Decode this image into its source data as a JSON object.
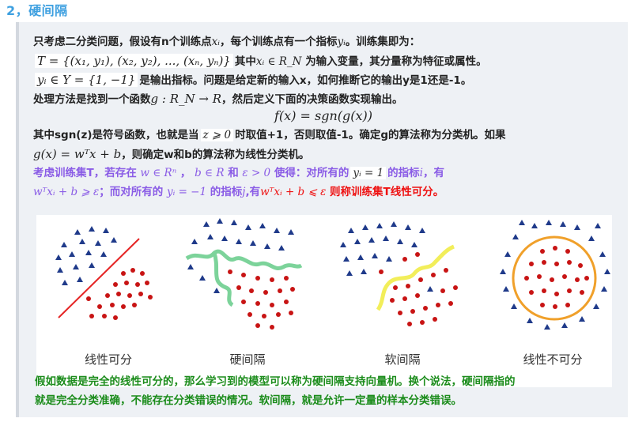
{
  "heading": "2，硬间隔",
  "lines": {
    "l1_a": "只考虑二分类问题，假设有n个训练点",
    "l1_xi": "xᵢ",
    "l1_b": "，每个训练点有一个指标",
    "l1_yi": "yᵢ",
    "l1_c": "。训练集即为：",
    "l2_math": "T = {(x₁, y₁), (x₂, y₂), ..., (xₙ, yₙ)}",
    "l2_a": "其中",
    "l2_math2": "xᵢ ∈ R_N",
    "l2_b": "为输入变量，其分量称为特征或属性。",
    "l3_math": "yᵢ ∈ Y = {1, −1}",
    "l3_a": "是输出指标。问题是给定新的输入x，如何推断它的输出y是1还是-1。",
    "l4_a": "处理方法是找到一个函数",
    "l4_math": "g : R_N → R",
    "l4_b": "，然后定义下面的决策函数实现输出。",
    "l5_math": "f(x) = sgn(g(x))",
    "l6_a": "其中sgn(z)是符号函数，也就是当",
    "l6_math": "z ⩾ 0",
    "l6_b": "时取值+1，否则取值-1。确定g的算法称为分类机。如果",
    "l7_math": "g(x) = wᵀx + b",
    "l7_a": "，则确定w和b的算法称为线性分类机。",
    "l8_a": "考虑训练集T，若存在",
    "l8_m1": "w ∈ Rⁿ",
    "l8_b": "，",
    "l8_m2": "b ∈ R",
    "l8_c": "和",
    "l8_m3": "ε > 0",
    "l8_d": "使得：对所有的",
    "l8_m4": "yᵢ = 1",
    "l8_e": "的指标",
    "l8_m5": "i",
    "l8_f": "，有",
    "l9_m1": "wᵀxᵢ + b ⩾ ε",
    "l9_a": "；而对所有的",
    "l9_m2": "yᵢ = −1",
    "l9_b": "的指标",
    "l9_m3": "j",
    "l9_c": ",有",
    "l9_m4": "wᵀxᵢ + b ⩽ ε",
    "l9_d": "则称训练集T线性可分。"
  },
  "figure": {
    "labels": [
      "线性可分",
      "硬间隔",
      "软间隔",
      "线性不可分"
    ]
  },
  "bottom": {
    "line1": "假如数据是完全的线性可分的，那么学习到的模型可以称为硬间隔支持向量机。换个说法，硬间隔指的",
    "line2": "就是完全分类准确，不能存在分类错误的情况。软间隔，就是允许一定量的样本分类错误。"
  },
  "colors": {
    "heading": "#3ea0e0",
    "purple": "#8a5ce6",
    "red": "#ee1111",
    "green": "#1b8c1b",
    "triangle": "#1f3a8a",
    "dot": "#c81414",
    "green_curve": "#7cd39a",
    "yellow_curve": "#f2ee5a",
    "orange_circle": "#f0a02a"
  }
}
